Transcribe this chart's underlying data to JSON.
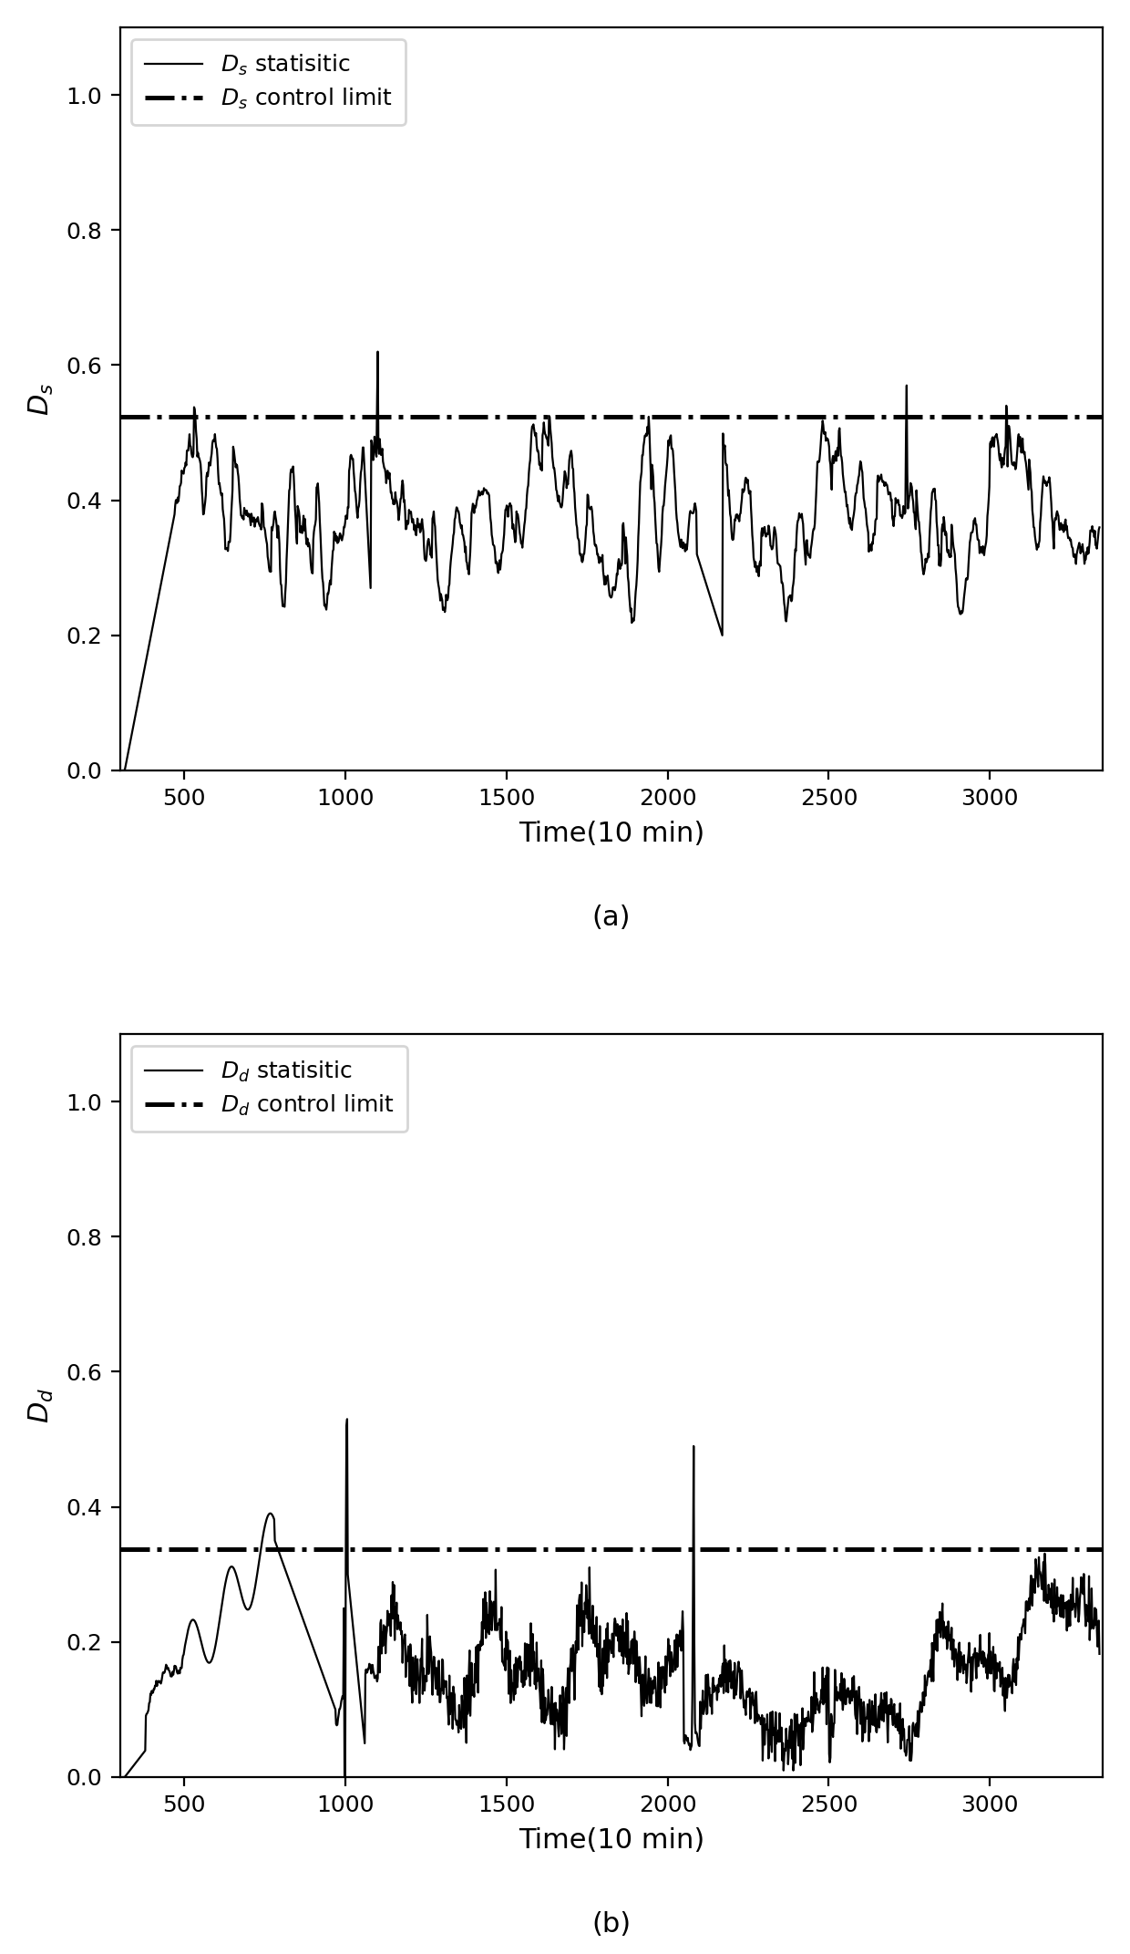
{
  "fig_width": 6.2,
  "fig_height": 10.715,
  "dpi": 200,
  "background_color": "#ffffff",
  "subplot_a": {
    "ylabel": "$D_s$",
    "xlabel": "Time(10 min)",
    "xlim": [
      300,
      3350
    ],
    "ylim": [
      0.0,
      1.1
    ],
    "yticks": [
      0.0,
      0.2,
      0.4,
      0.6,
      0.8,
      1.0
    ],
    "xticks": [
      500,
      1000,
      1500,
      2000,
      2500,
      3000
    ],
    "control_limit": 0.524,
    "line_label": "$D_s$ statisitic",
    "cl_label": "$D_s$ control limit",
    "caption": "(a)"
  },
  "subplot_b": {
    "ylabel": "$D_d$",
    "xlabel": "Time(10 min)",
    "xlim": [
      300,
      3350
    ],
    "ylim": [
      0.0,
      1.1
    ],
    "yticks": [
      0.0,
      0.2,
      0.4,
      0.6,
      0.8,
      1.0
    ],
    "xticks": [
      500,
      1000,
      1500,
      2000,
      2500,
      3000
    ],
    "control_limit": 0.338,
    "line_label": "$D_d$ statisitic",
    "cl_label": "$D_d$ control limit",
    "caption": "(b)"
  },
  "line_color": "#000000",
  "cl_color": "#000000",
  "line_width": 0.8,
  "cl_linewidth": 1.8,
  "legend_fontsize": 9,
  "axis_label_fontsize": 11,
  "tick_fontsize": 9,
  "caption_fontsize": 11
}
